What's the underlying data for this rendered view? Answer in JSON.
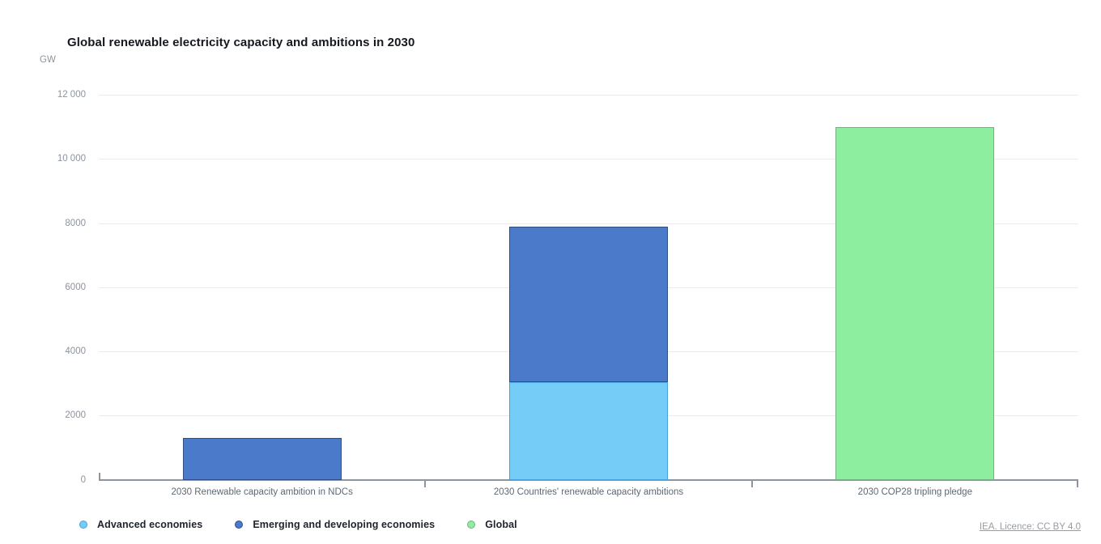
{
  "title": "Global renewable electricity capacity and ambitions in 2030",
  "unit_label": "GW",
  "license": "IEA. Licence: CC BY 4.0",
  "legend": [
    {
      "label": "Advanced economies",
      "color": "#74CCF7",
      "border": "#45A3D9"
    },
    {
      "label": "Emerging and developing economies",
      "color": "#4A7AC9",
      "border": "#2E4F86"
    },
    {
      "label": "Global",
      "color": "#8DEEA0",
      "border": "#74B183"
    }
  ],
  "chart_data": {
    "type": "bar",
    "stacked": true,
    "title": "Global renewable electricity capacity and ambitions in 2030",
    "xlabel": "",
    "ylabel": "GW",
    "ylim": [
      0,
      12000
    ],
    "grid": true,
    "legend_position": "bottom",
    "categories": [
      "2030 Renewable capacity ambition in NDCs",
      "2030 Countries' renewable capacity ambitions",
      "2030 COP28 tripling pledge"
    ],
    "yticks": [
      0,
      2000,
      4000,
      6000,
      8000,
      10000,
      12000
    ],
    "ytick_labels": [
      "0",
      "2000",
      "4000",
      "6000",
      "8000",
      "10 000",
      "12 000"
    ],
    "series": [
      {
        "name": "Advanced economies",
        "color": "#74CCF7",
        "border": "#45A3D9",
        "values": [
          0,
          3050,
          0
        ]
      },
      {
        "name": "Emerging and developing economies",
        "color": "#4A7AC9",
        "border": "#2E4F86",
        "values": [
          1300,
          4850,
          0
        ]
      },
      {
        "name": "Global",
        "color": "#8DEEA0",
        "border": "#74B183",
        "values": [
          0,
          0,
          11000
        ]
      }
    ],
    "totals": [
      1300,
      7900,
      11000
    ]
  }
}
